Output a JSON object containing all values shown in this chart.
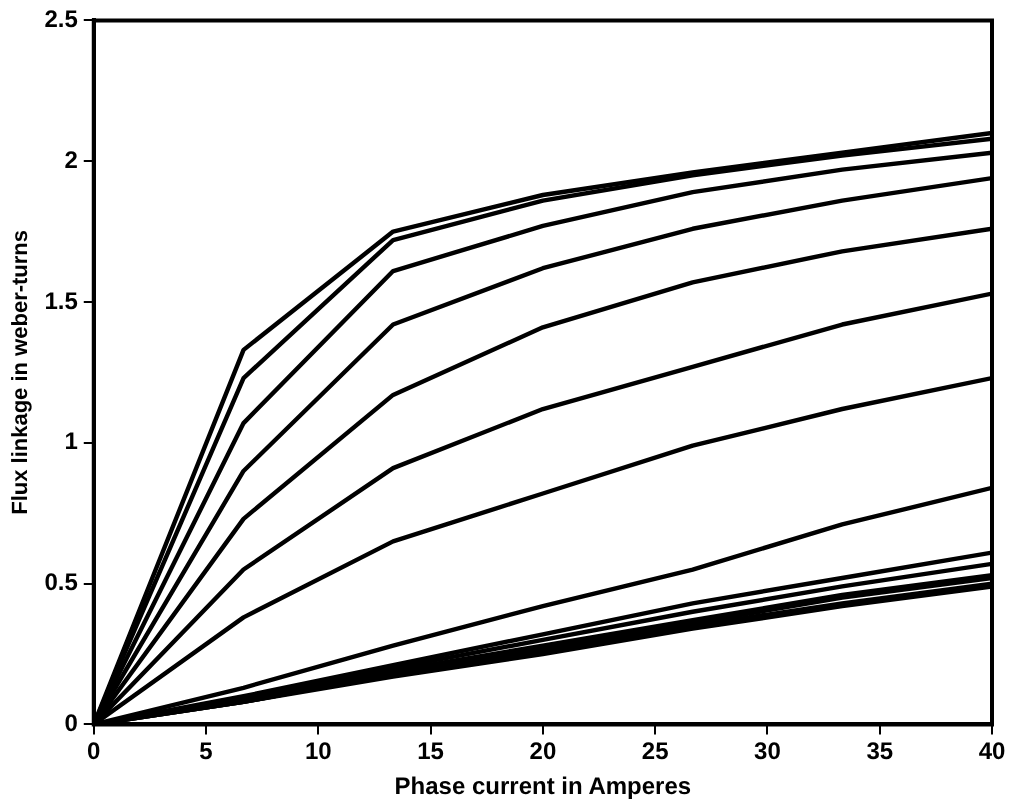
{
  "chart_data": {
    "type": "line",
    "xlabel": "Phase current in Amperes",
    "ylabel": "Flux linkage in weber-turns",
    "xlim": [
      0,
      40
    ],
    "xticks": [
      0,
      5,
      10,
      15,
      20,
      25,
      30,
      35,
      40
    ],
    "ylim": [
      0,
      2.5
    ],
    "yticks": [
      0,
      0.5,
      1,
      1.5,
      2,
      2.5
    ],
    "x": [
      0,
      6.67,
      13.33,
      20,
      26.67,
      33.33,
      40
    ],
    "marker": "none",
    "line_style": "solid",
    "series": [
      {
        "color": "#000000",
        "values": [
          0,
          1.33,
          1.75,
          1.88,
          1.96,
          2.03,
          2.1
        ]
      },
      {
        "color": "#000000",
        "values": [
          0,
          1.23,
          1.72,
          1.86,
          1.95,
          2.02,
          2.08
        ]
      },
      {
        "color": "#000000",
        "values": [
          0,
          1.07,
          1.61,
          1.77,
          1.89,
          1.97,
          2.03
        ]
      },
      {
        "color": "#000000",
        "values": [
          0,
          0.9,
          1.42,
          1.62,
          1.76,
          1.86,
          1.94
        ]
      },
      {
        "color": "#000000",
        "values": [
          0,
          0.73,
          1.17,
          1.41,
          1.57,
          1.68,
          1.76
        ]
      },
      {
        "color": "#000000",
        "values": [
          0,
          0.55,
          0.91,
          1.12,
          1.27,
          1.42,
          1.53
        ]
      },
      {
        "color": "#000000",
        "values": [
          0,
          0.38,
          0.65,
          0.82,
          0.99,
          1.12,
          1.23
        ]
      },
      {
        "color": "#000000",
        "values": [
          0,
          0.13,
          0.28,
          0.42,
          0.55,
          0.71,
          0.84
        ]
      },
      {
        "color": "#000000",
        "values": [
          0,
          0.1,
          0.21,
          0.32,
          0.43,
          0.52,
          0.61
        ]
      },
      {
        "color": "#000000",
        "values": [
          0,
          0.09,
          0.2,
          0.3,
          0.4,
          0.49,
          0.57
        ]
      },
      {
        "color": "#000000",
        "values": [
          0,
          0.09,
          0.19,
          0.28,
          0.37,
          0.46,
          0.53
        ]
      },
      {
        "color": "#000000",
        "values": [
          0,
          0.08,
          0.18,
          0.27,
          0.36,
          0.45,
          0.52
        ]
      },
      {
        "color": "#000000",
        "values": [
          0,
          0.08,
          0.18,
          0.26,
          0.35,
          0.43,
          0.5
        ]
      },
      {
        "color": "#000000",
        "values": [
          0,
          0.08,
          0.17,
          0.25,
          0.34,
          0.42,
          0.49
        ]
      }
    ]
  }
}
